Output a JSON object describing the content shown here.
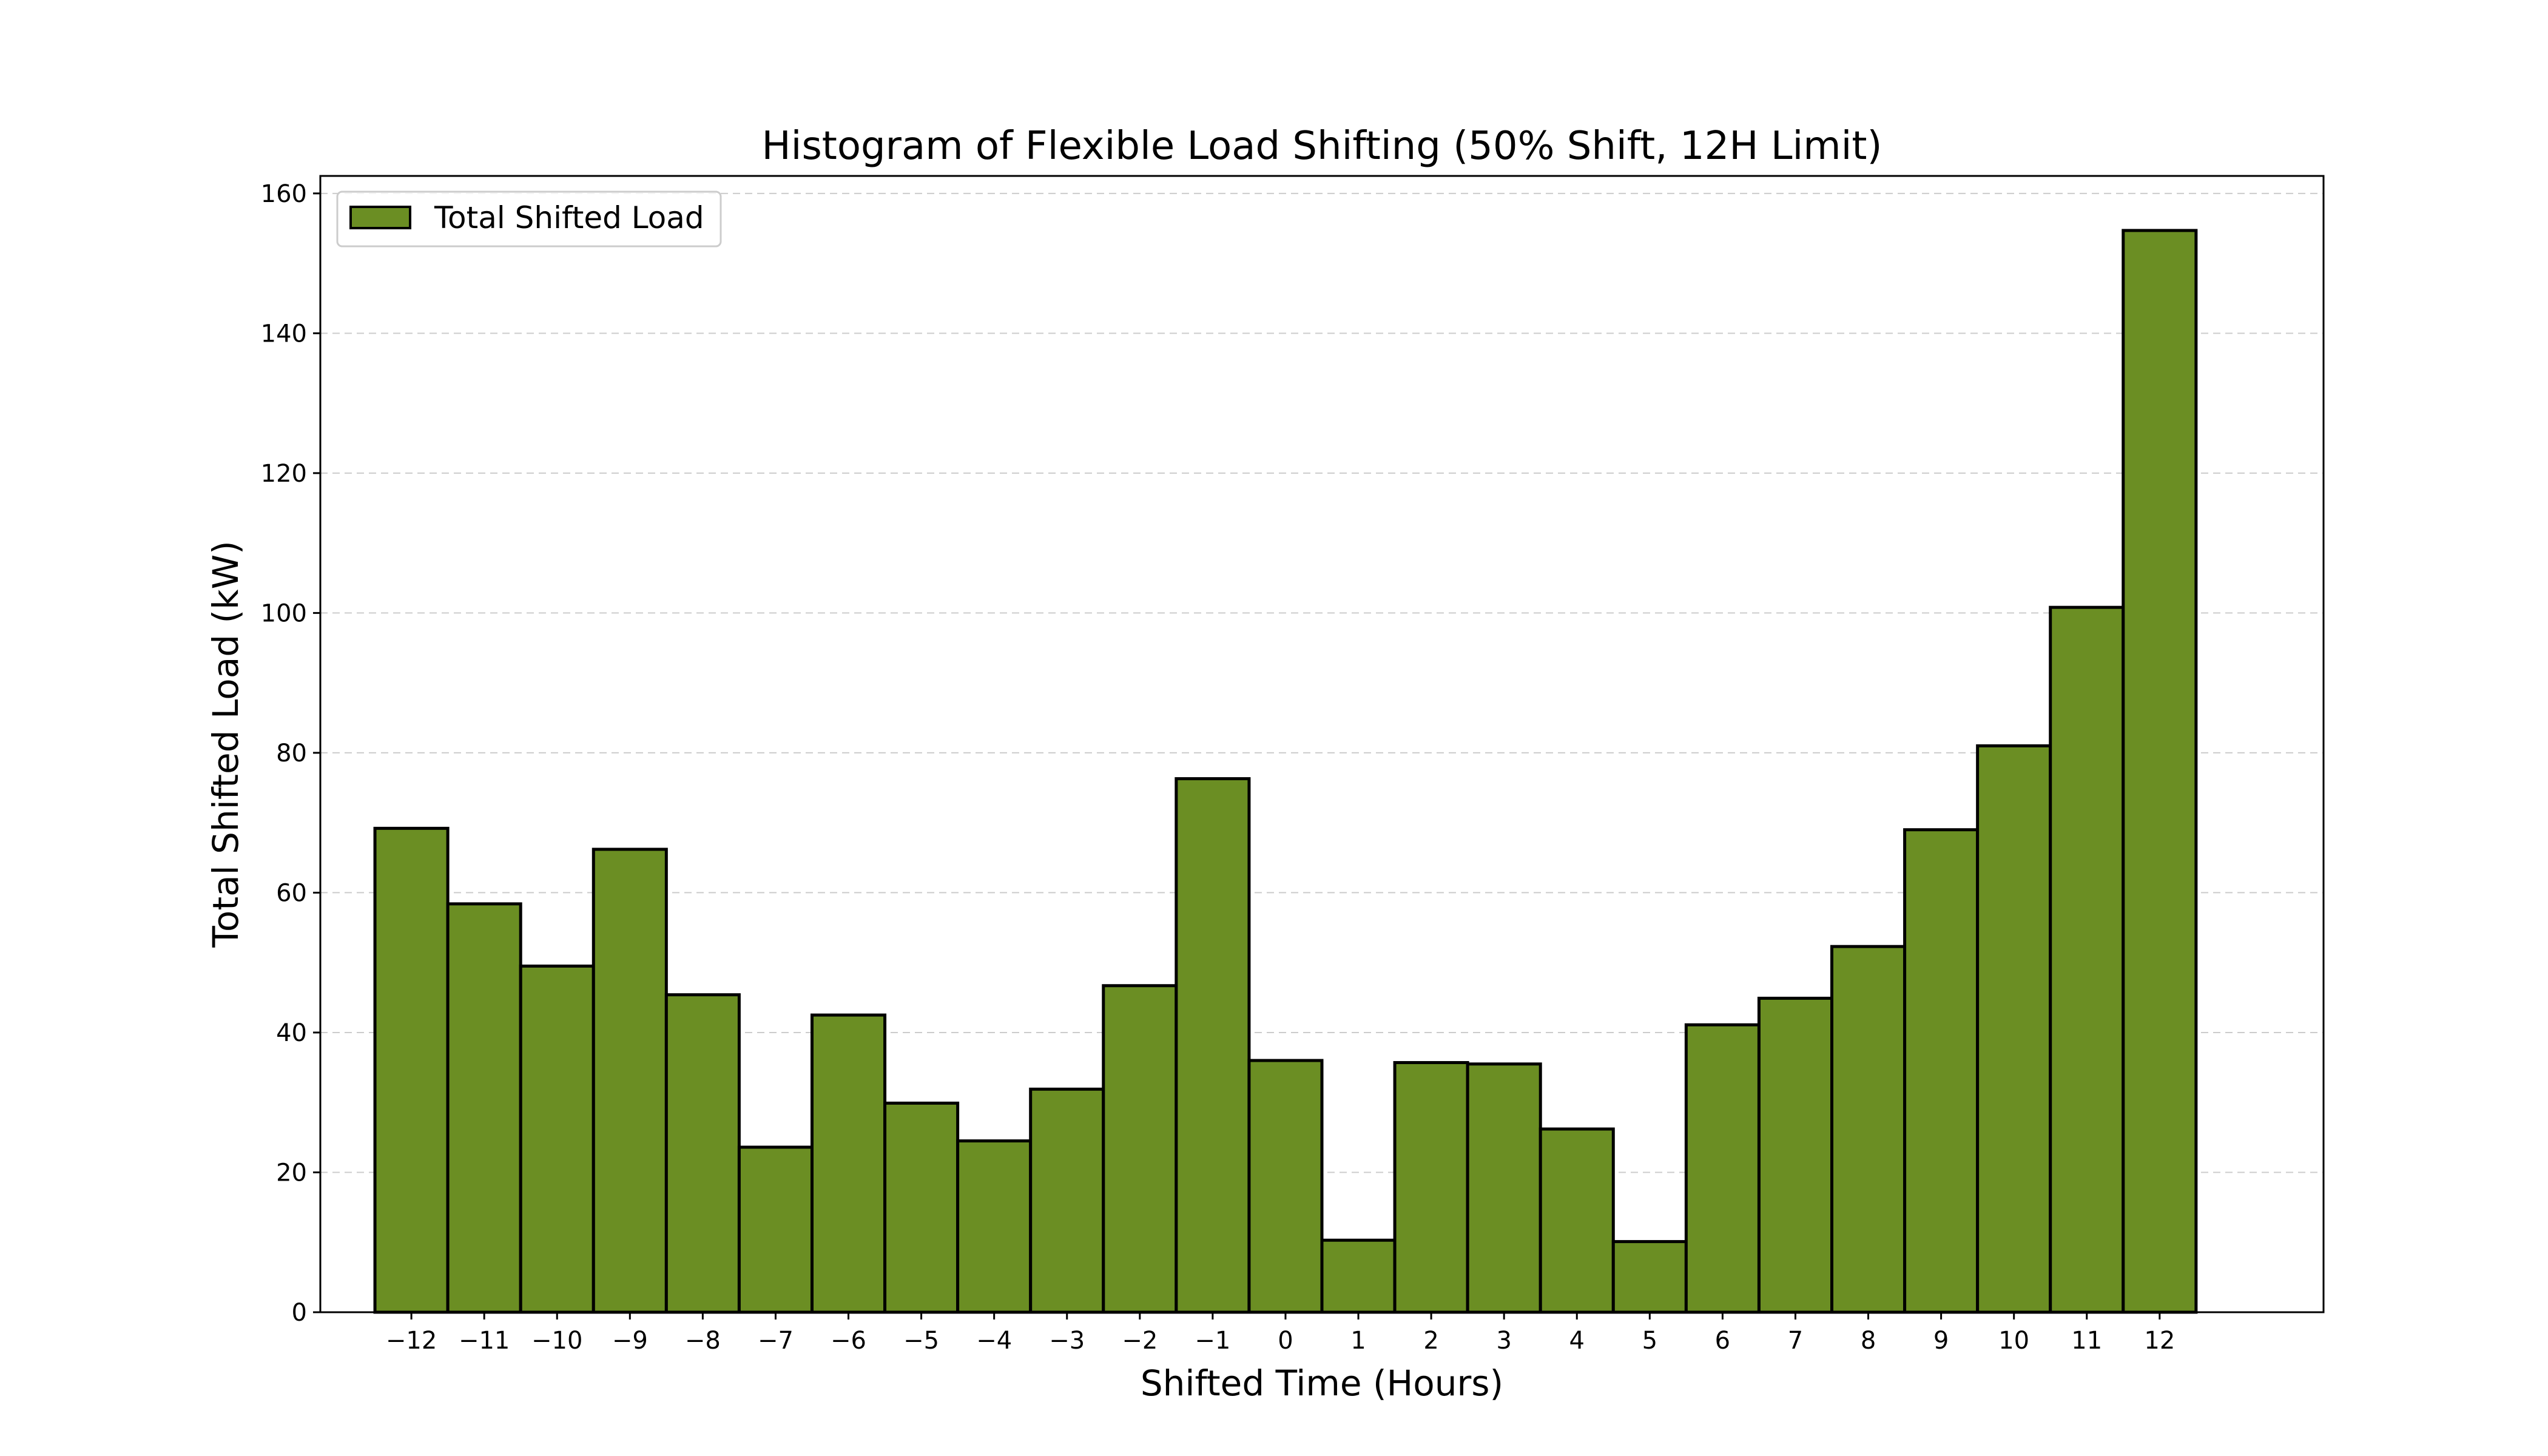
{
  "chart_data": {
    "type": "bar",
    "title": "Histogram of Flexible Load Shifting (50% Shift, 12H Limit)",
    "xlabel": "Shifted Time (Hours)",
    "ylabel": "Total Shifted Load (kW)",
    "categories": [
      -12,
      -11,
      -10,
      -9,
      -8,
      -7,
      -6,
      -5,
      -4,
      -3,
      -2,
      -1,
      0,
      1,
      2,
      3,
      4,
      5,
      6,
      7,
      8,
      9,
      10,
      11,
      12
    ],
    "x_tick_labels": [
      "−12",
      "−11",
      "−10",
      "−9",
      "−8",
      "−7",
      "−6",
      "−5",
      "−4",
      "−3",
      "−2",
      "−1",
      "0",
      "1",
      "2",
      "3",
      "4",
      "5",
      "6",
      "7",
      "8",
      "9",
      "10",
      "11",
      "12"
    ],
    "series": [
      {
        "name": "Total Shifted Load",
        "values": [
          69.2,
          58.4,
          49.5,
          66.2,
          45.4,
          23.6,
          42.5,
          29.9,
          24.5,
          31.9,
          46.7,
          76.3,
          36.0,
          10.3,
          35.7,
          35.5,
          26.2,
          10.1,
          41.1,
          44.9,
          52.3,
          69.0,
          81.0,
          100.8,
          154.7
        ]
      }
    ],
    "ylim": [
      0,
      162.5
    ],
    "xlim": [
      -13.25,
      14.25
    ],
    "y_ticks": [
      0,
      20,
      40,
      60,
      80,
      100,
      120,
      140,
      160
    ],
    "y_tick_labels": [
      "0",
      "20",
      "40",
      "60",
      "80",
      "100",
      "120",
      "140",
      "160"
    ],
    "grid": "y-dashed",
    "legend": "top-left",
    "colors": {
      "bar_fill": "#6b8e23",
      "bar_edge": "#000000",
      "grid": "#cccccc"
    }
  }
}
